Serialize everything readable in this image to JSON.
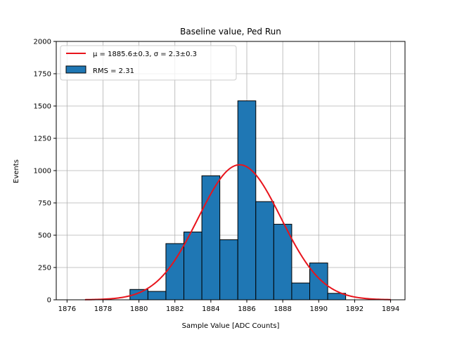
{
  "chart_data": {
    "type": "bar",
    "title": "Baseline value, Ped Run",
    "xlabel": "Sample Value [ADC Counts]",
    "ylabel": "Events",
    "xlim": [
      1875.4,
      1894.8
    ],
    "ylim": [
      0,
      2000
    ],
    "xticks": [
      1876,
      1878,
      1880,
      1882,
      1884,
      1886,
      1888,
      1890,
      1892,
      1894
    ],
    "yticks": [
      0,
      250,
      500,
      750,
      1000,
      1250,
      1500,
      1750,
      2000
    ],
    "grid": true,
    "legend_position": "top-left",
    "bin_edges": [
      1879.5,
      1880.5,
      1881.5,
      1882.5,
      1883.5,
      1884.5,
      1885.5,
      1886.5,
      1887.5,
      1888.5,
      1889.5,
      1890.5,
      1891.5
    ],
    "bin_values": [
      80,
      65,
      435,
      525,
      960,
      465,
      1540,
      760,
      585,
      130,
      285,
      50
    ],
    "histogram_color": "#1f77b4",
    "fit": {
      "mu": 1885.6,
      "sigma": 2.3,
      "amplitude": 1045,
      "x_range": [
        1877,
        1894
      ],
      "color": "#e8141c"
    },
    "legend": {
      "fit_label_prefix": "μ = 1885.6±0.3, ",
      "fit_label_sigma": "σ = 2.3±0.3",
      "hist_label": "RMS = 2.31"
    }
  }
}
